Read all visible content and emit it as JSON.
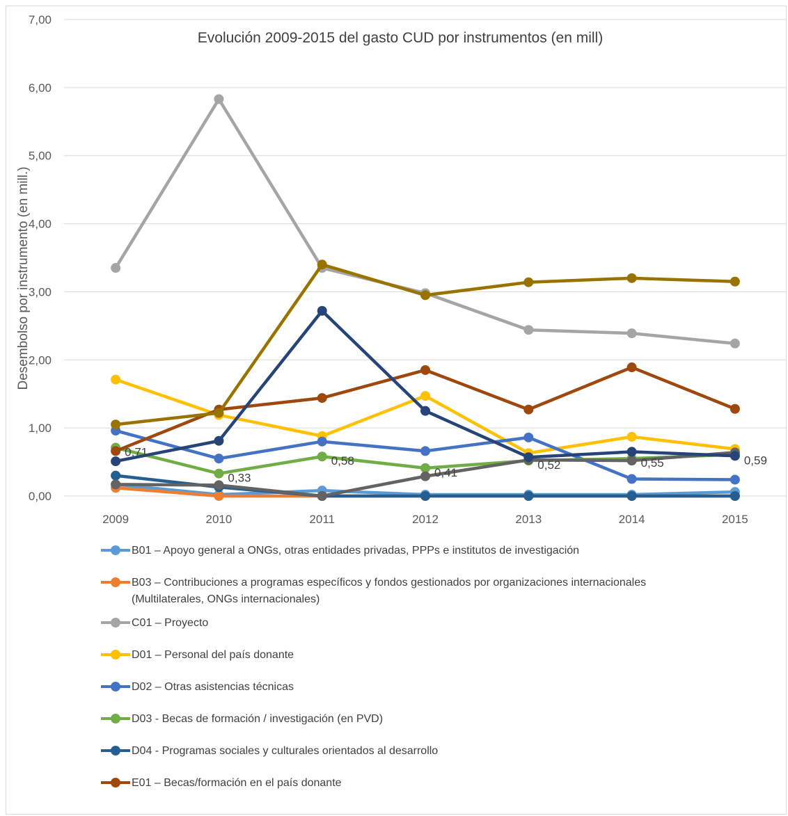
{
  "chart_data": {
    "type": "line",
    "title": "Evolución 2009-2015 del gasto CUD por instrumentos (en mill)",
    "ylabel": "Desembolso por instrumento (en mill.)",
    "xlabel": "",
    "categories": [
      "2009",
      "2010",
      "2011",
      "2012",
      "2013",
      "2014",
      "2015"
    ],
    "ylim": [
      0,
      7
    ],
    "yticks": [
      "0,00",
      "1,00",
      "2,00",
      "3,00",
      "4,00",
      "5,00",
      "6,00",
      "7,00"
    ],
    "grid": true,
    "legend_position": "bottom",
    "series": [
      {
        "name": "B01 – Apoyo general a ONGs, otras entidades privadas, PPPs e institutos de investigación",
        "color": "#5b9bd5",
        "values": [
          0.17,
          0.02,
          0.08,
          0.02,
          0.02,
          0.02,
          0.06
        ],
        "in_legend": true
      },
      {
        "name": "B03 – Contribuciones a programas específicos y fondos gestionados por organizaciones internacionales (Multilaterales, ONGs internacionales)",
        "color": "#ed7d31",
        "values": [
          0.12,
          0.0,
          0.0,
          0.0,
          0.0,
          0.0,
          0.0
        ],
        "in_legend": true
      },
      {
        "name": "C01 – Proyecto",
        "color": "#a5a5a5",
        "values": [
          3.35,
          5.83,
          3.35,
          2.98,
          2.44,
          2.39,
          2.24
        ],
        "in_legend": true
      },
      {
        "name": "D01 – Personal del país donante",
        "color": "#ffc000",
        "values": [
          1.71,
          1.19,
          0.88,
          1.47,
          0.63,
          0.87,
          0.69
        ],
        "in_legend": true
      },
      {
        "name": "D02 – Otras asistencias técnicas",
        "color": "#4472c4",
        "values": [
          0.96,
          0.55,
          0.8,
          0.66,
          0.86,
          0.25,
          0.24
        ],
        "in_legend": true
      },
      {
        "name": "D03 - Becas de formación / investigación (en PVD)",
        "color": "#70ad47",
        "values": [
          0.71,
          0.33,
          0.58,
          0.41,
          0.52,
          0.55,
          0.61
        ],
        "in_legend": true
      },
      {
        "name": "D04 - Programas sociales y culturales orientados al desarrollo",
        "color": "#255e91",
        "values": [
          0.3,
          0.13,
          0.0,
          0.0,
          0.0,
          0.0,
          0.0
        ],
        "in_legend": true
      },
      {
        "name": "E01 – Becas/formación en el país donante",
        "color": "#9e480e",
        "values": [
          0.66,
          1.27,
          1.44,
          1.85,
          1.27,
          1.89,
          1.28
        ],
        "in_legend": true
      },
      {
        "name": "",
        "color": "#636363",
        "values": [
          0.17,
          0.16,
          0.0,
          0.29,
          0.53,
          0.52,
          0.64
        ],
        "in_legend": false
      },
      {
        "name": "",
        "color": "#997300",
        "values": [
          1.05,
          1.22,
          3.4,
          2.95,
          3.14,
          3.2,
          3.15
        ],
        "in_legend": false
      },
      {
        "name": "",
        "color": "#264478",
        "values": [
          0.51,
          0.81,
          2.72,
          1.25,
          0.57,
          0.65,
          0.59
        ],
        "in_legend": false
      }
    ],
    "data_labels": [
      {
        "series": "D03 - Becas de formación / investigación (en PVD)",
        "category": "2009",
        "text": "0,71"
      },
      {
        "series": "D03 - Becas de formación / investigación (en PVD)",
        "category": "2010",
        "text": "0,33"
      },
      {
        "series": "D03 - Becas de formación / investigación (en PVD)",
        "category": "2011",
        "text": "0,58"
      },
      {
        "series": "D03 - Becas de formación / investigación (en PVD)",
        "category": "2012",
        "text": "0,41"
      },
      {
        "series": "D03 - Becas de formación / investigación (en PVD)",
        "category": "2013",
        "text": "0,52"
      },
      {
        "series": "D03 - Becas de formación / investigación (en PVD)",
        "category": "2014",
        "text": "0,55"
      },
      {
        "series": "",
        "category": "2015",
        "text": "0,59"
      }
    ]
  }
}
